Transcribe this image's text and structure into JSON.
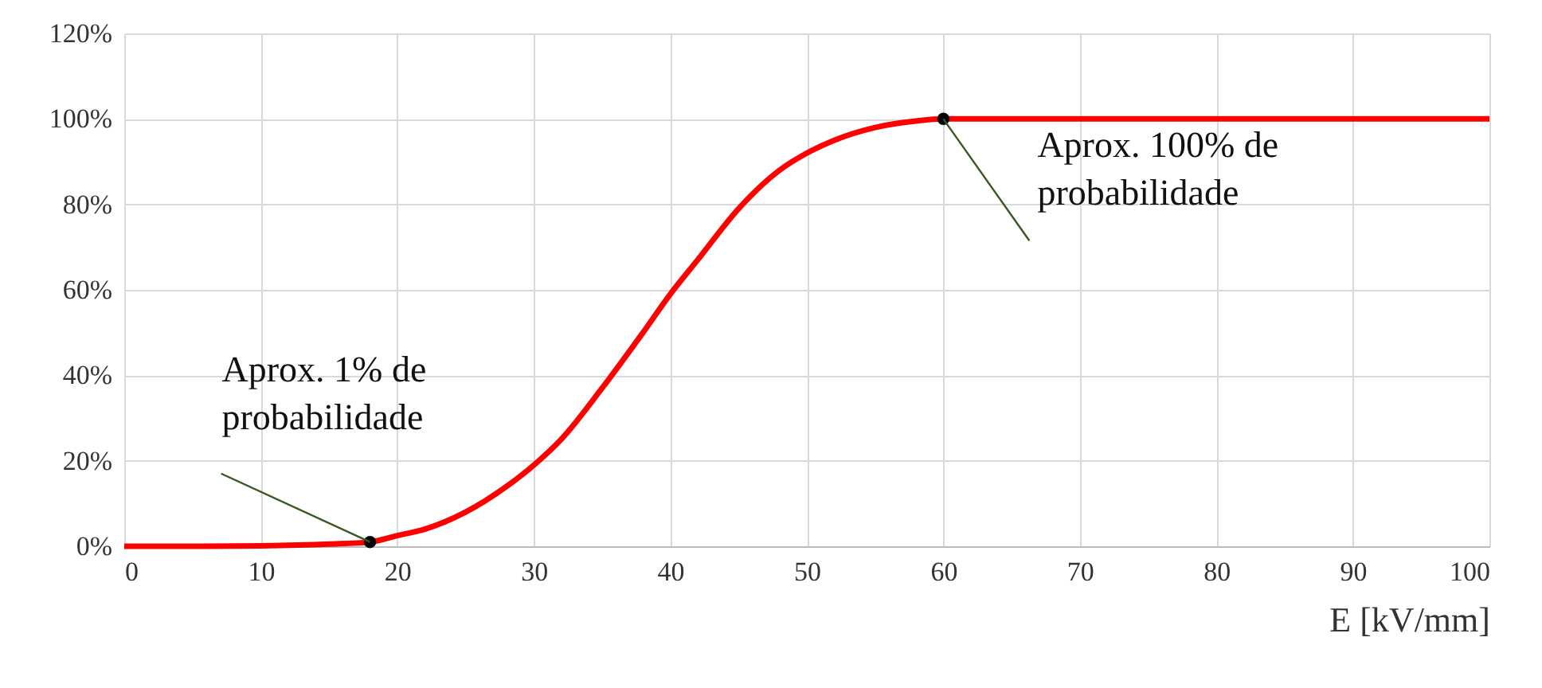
{
  "chart_data": {
    "type": "line",
    "xlabel": "E [kV/mm]",
    "series": [
      {
        "color": "#ff0000",
        "x": [
          0,
          5,
          10,
          15,
          18,
          20,
          22,
          25,
          28,
          30,
          32,
          35,
          38,
          40,
          42,
          45,
          48,
          50,
          52,
          55,
          58,
          60,
          70,
          80,
          90,
          100
        ],
        "values": [
          0,
          0,
          0.1,
          0.5,
          1,
          2.5,
          4,
          8,
          14,
          19,
          25,
          37,
          50,
          59,
          67,
          79,
          88,
          92,
          95,
          98,
          99.5,
          100,
          100,
          100,
          100,
          100
        ]
      },
      {
        "type": "scatter",
        "color": "#000000",
        "marker": "circle",
        "x": [
          18,
          60
        ],
        "values": [
          1,
          100
        ]
      }
    ],
    "xlim": [
      0,
      100
    ],
    "xticks": [
      0,
      10,
      20,
      30,
      40,
      50,
      60,
      70,
      80,
      90,
      100
    ],
    "ylim": [
      0,
      120
    ],
    "yticks": [
      {
        "value": 0,
        "label": "0%"
      },
      {
        "value": 20,
        "label": "20%"
      },
      {
        "value": 40,
        "label": "40%"
      },
      {
        "value": 60,
        "label": "60%"
      },
      {
        "value": 80,
        "label": "80%"
      },
      {
        "value": 100,
        "label": "100%"
      },
      {
        "value": 120,
        "label": "120%"
      }
    ],
    "grid": true,
    "marker": "none",
    "line_style": "solid",
    "annotations": [
      {
        "text": "Aprox. 1% de\nprobabilidade",
        "x": 18,
        "y": 1
      },
      {
        "text": "Aprox. 100% de\nprobabilidade",
        "x": 60,
        "y": 100
      }
    ]
  }
}
